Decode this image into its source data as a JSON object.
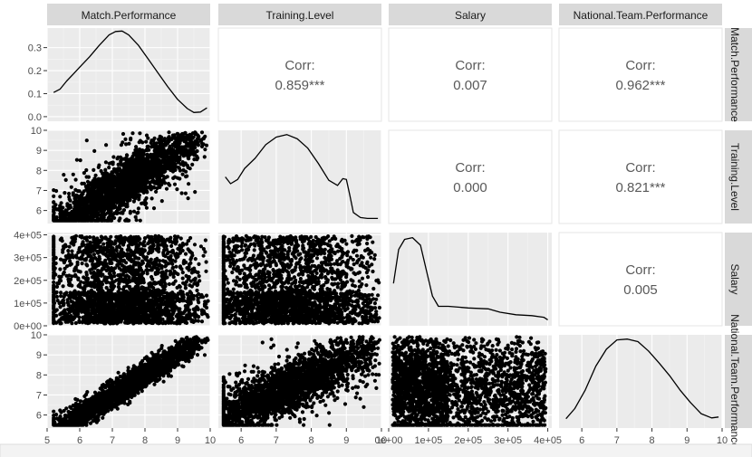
{
  "chart_data": {
    "type": "scatter",
    "layout": "pairs-matrix",
    "variables": [
      "Match.Performance",
      "Training.Level",
      "Salary",
      "National.Team.Performance"
    ],
    "axes": [
      {
        "name": "Match.Performance",
        "range": [
          5.0,
          10.0
        ],
        "ticks": [
          5,
          6,
          7,
          8,
          9,
          10
        ],
        "tick_labels": [
          "5",
          "6",
          "7",
          "8",
          "9",
          "10"
        ]
      },
      {
        "name": "Training.Level",
        "range": [
          5.35,
          10.0
        ],
        "ticks": [
          6,
          7,
          8,
          9,
          10
        ],
        "tick_labels": [
          "6",
          "7",
          "8",
          "9",
          "10"
        ]
      },
      {
        "name": "Salary",
        "range": [
          0,
          410000
        ],
        "ticks": [
          0,
          100000,
          200000,
          300000,
          400000
        ],
        "tick_labels": [
          "0e+00",
          "1e+05",
          "2e+05",
          "3e+05",
          "4e+05"
        ]
      },
      {
        "name": "National.Team.Performance",
        "range": [
          5.35,
          10.0
        ],
        "ticks": [
          6,
          7,
          8,
          9,
          10
        ],
        "tick_labels": [
          "6",
          "7",
          "8",
          "9",
          "10"
        ]
      }
    ],
    "density_axis": {
      "range": [
        -0.02,
        0.385
      ],
      "ticks": [
        0.0,
        0.1,
        0.2,
        0.3
      ],
      "tick_labels": [
        "0.0",
        "0.1",
        "0.2",
        "0.3"
      ]
    },
    "densities": [
      {
        "variable": "Match.Performance",
        "x": [
          5.2,
          5.4,
          5.6,
          5.8,
          6.0,
          6.3,
          6.6,
          6.9,
          7.1,
          7.3,
          7.5,
          7.8,
          8.1,
          8.4,
          8.7,
          9.0,
          9.3,
          9.5,
          9.7,
          9.9
        ],
        "y": [
          0.105,
          0.12,
          0.155,
          0.185,
          0.215,
          0.26,
          0.31,
          0.355,
          0.37,
          0.372,
          0.355,
          0.31,
          0.25,
          0.19,
          0.13,
          0.075,
          0.035,
          0.018,
          0.02,
          0.038
        ]
      },
      {
        "variable": "Training.Level",
        "x": [
          5.55,
          5.7,
          5.9,
          6.1,
          6.4,
          6.7,
          7.0,
          7.3,
          7.6,
          7.9,
          8.2,
          8.5,
          8.75,
          8.9,
          9.0,
          9.1,
          9.2,
          9.4,
          9.6,
          9.9
        ],
        "y": [
          0.5,
          0.42,
          0.47,
          0.6,
          0.72,
          0.88,
          0.97,
          1.0,
          0.95,
          0.84,
          0.66,
          0.46,
          0.4,
          0.48,
          0.47,
          0.28,
          0.08,
          0.02,
          0.01,
          0.01
        ]
      },
      {
        "variable": "Salary",
        "x": [
          12000,
          25000,
          40000,
          60000,
          80000,
          95000,
          110000,
          125000,
          150000,
          200000,
          250000,
          280000,
          320000,
          360000,
          390000,
          400000
        ],
        "y": [
          0.45,
          0.85,
          0.97,
          0.99,
          0.9,
          0.6,
          0.3,
          0.18,
          0.18,
          0.16,
          0.15,
          0.11,
          0.08,
          0.07,
          0.05,
          0.02
        ]
      },
      {
        "variable": "National.Team.Performance",
        "x": [
          5.55,
          5.8,
          6.1,
          6.4,
          6.7,
          7.0,
          7.3,
          7.6,
          7.9,
          8.2,
          8.5,
          8.8,
          9.1,
          9.4,
          9.7,
          9.9
        ],
        "y": [
          0.06,
          0.18,
          0.4,
          0.68,
          0.88,
          0.99,
          1.0,
          0.97,
          0.86,
          0.72,
          0.57,
          0.4,
          0.25,
          0.12,
          0.07,
          0.08
        ]
      }
    ],
    "correlations": [
      {
        "row": "Match.Performance",
        "col": "Training.Level",
        "label": "Corr:",
        "value": "0.859***"
      },
      {
        "row": "Match.Performance",
        "col": "Salary",
        "label": "Corr:",
        "value": "0.007"
      },
      {
        "row": "Match.Performance",
        "col": "National.Team.Performance",
        "label": "Corr:",
        "value": "0.962***"
      },
      {
        "row": "Training.Level",
        "col": "Salary",
        "label": "Corr:",
        "value": "0.000"
      },
      {
        "row": "Training.Level",
        "col": "National.Team.Performance",
        "label": "Corr:",
        "value": "0.821***"
      },
      {
        "row": "Salary",
        "col": "National.Team.Performance",
        "label": "Corr:",
        "value": "0.005"
      }
    ],
    "grid": true,
    "legend": "none"
  }
}
